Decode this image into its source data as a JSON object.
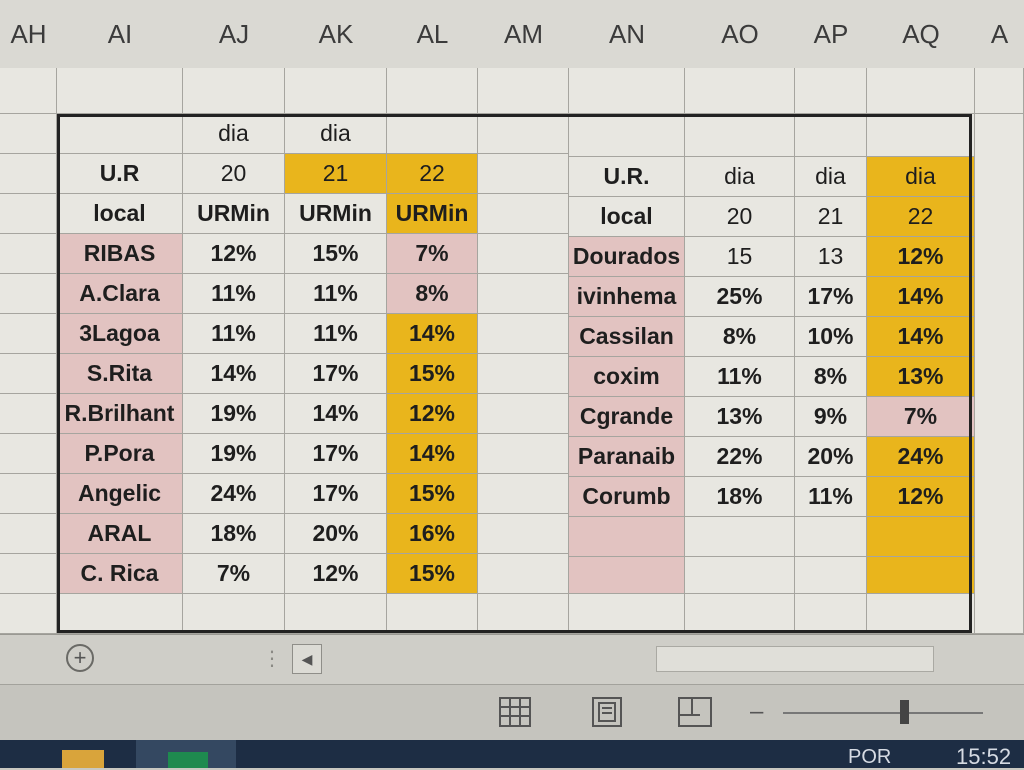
{
  "columns": [
    "AH",
    "AI",
    "AJ",
    "AK",
    "AL",
    "AM",
    "AN",
    "AO",
    "AP",
    "AQ",
    "A"
  ],
  "left_table": {
    "header_row1": [
      "",
      "dia",
      "dia",
      ""
    ],
    "header_row2": [
      "U.R",
      "20",
      "21",
      "22"
    ],
    "header_row3": [
      "local",
      "URMin",
      "URMin",
      "URMin"
    ],
    "rows": [
      [
        "RIBAS",
        "12%",
        "15%",
        "7%"
      ],
      [
        "A.Clara",
        "11%",
        "11%",
        "8%"
      ],
      [
        "3Lagoa",
        "11%",
        "11%",
        "14%"
      ],
      [
        "S.Rita",
        "14%",
        "17%",
        "15%"
      ],
      [
        "R.Brilhant",
        "19%",
        "14%",
        "12%"
      ],
      [
        "P.Pora",
        "19%",
        "17%",
        "14%"
      ],
      [
        "Angelic",
        "24%",
        "17%",
        "15%"
      ],
      [
        "ARAL",
        "18%",
        "20%",
        "16%"
      ],
      [
        "C. Rica",
        "7%",
        "12%",
        "15%"
      ]
    ]
  },
  "right_table": {
    "header_row1": [
      "U.R.",
      "dia",
      "dia",
      "dia"
    ],
    "header_row2": [
      "local",
      "20",
      "21",
      "22"
    ],
    "rows": [
      [
        "Dourados",
        "15",
        "13",
        "12%"
      ],
      [
        "ivinhema",
        "25%",
        "17%",
        "14%"
      ],
      [
        "Cassilan",
        "8%",
        "10%",
        "14%"
      ],
      [
        "coxim",
        "11%",
        "8%",
        "13%"
      ],
      [
        "Cgrande",
        "13%",
        "9%",
        "7%"
      ],
      [
        "Paranaib",
        "22%",
        "20%",
        "24%"
      ],
      [
        "Corumb",
        "18%",
        "11%",
        "12%"
      ],
      [
        "",
        "",
        "",
        ""
      ],
      [
        "",
        "",
        "",
        ""
      ]
    ]
  },
  "statusbar": {
    "language": "POR",
    "time": "15:52"
  },
  "colors": {
    "highlight_yellow": "#e9b51c",
    "highlight_pink": "#e2c3c1"
  }
}
